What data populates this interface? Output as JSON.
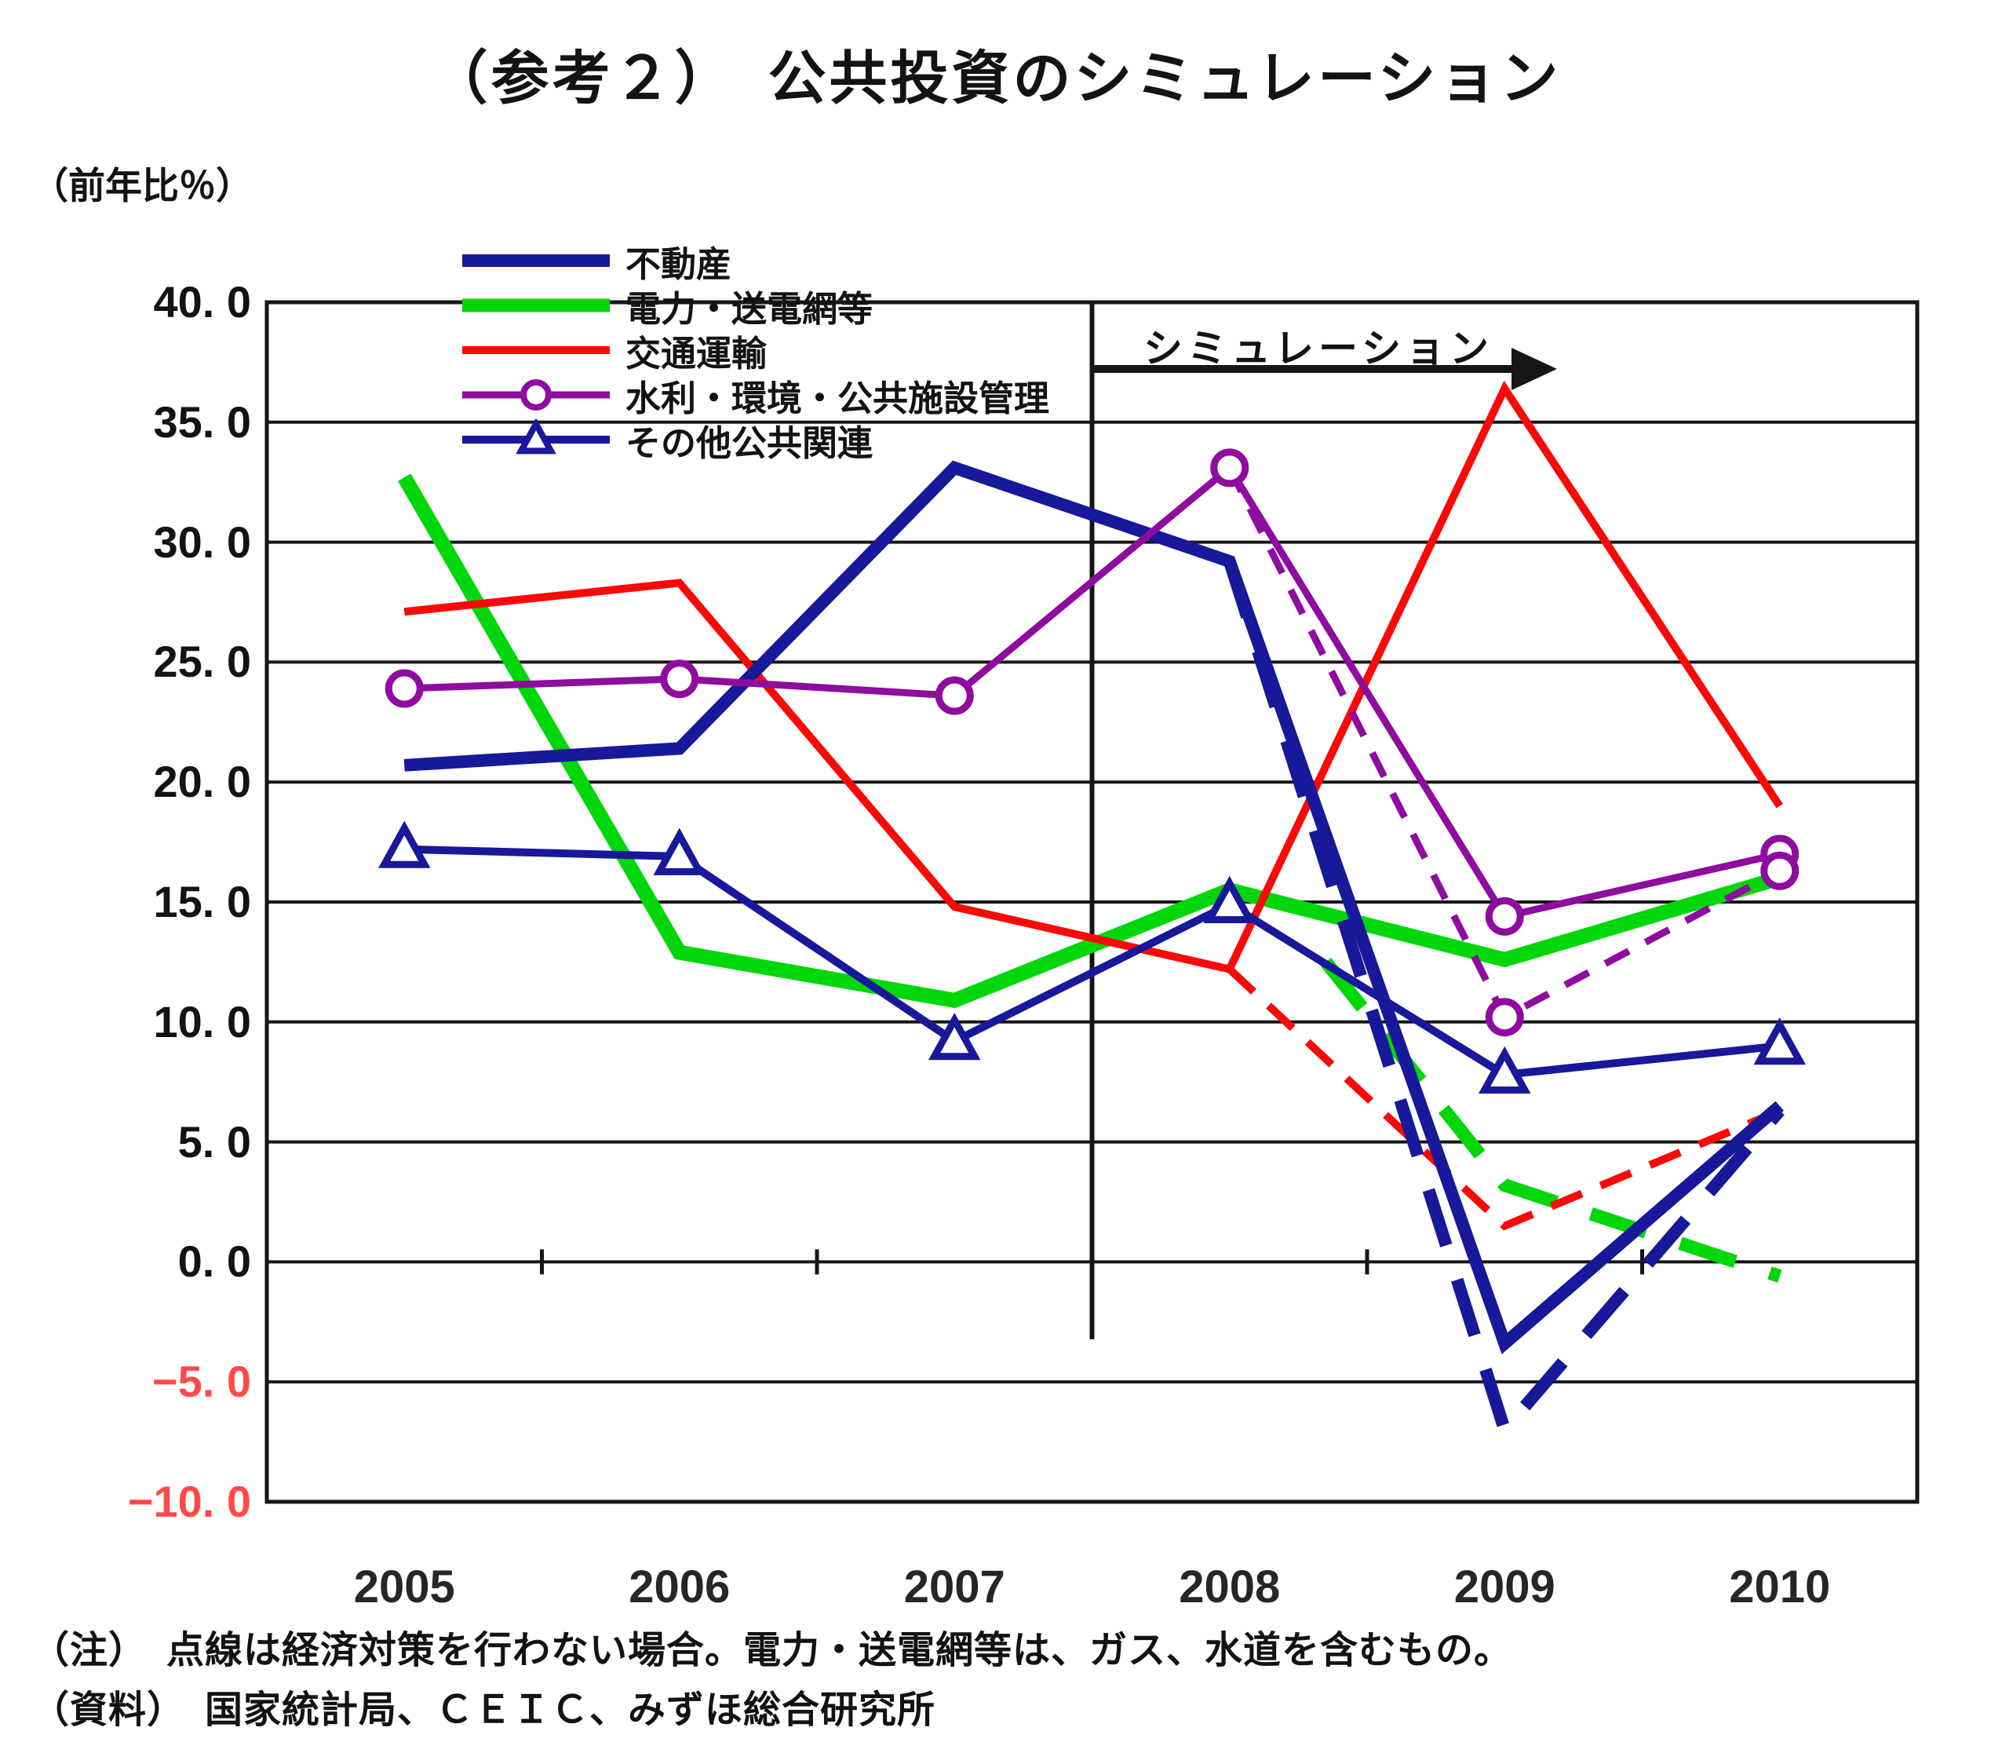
{
  "title": "（参考２）　公共投資のシミュレーション",
  "y_axis": {
    "unit_label": "（前年比％）",
    "ticks": [
      {
        "label": "40. 0",
        "value": 40,
        "color": "#131313"
      },
      {
        "label": "35. 0",
        "value": 35,
        "color": "#131313"
      },
      {
        "label": "30. 0",
        "value": 30,
        "color": "#131313"
      },
      {
        "label": "25. 0",
        "value": 25,
        "color": "#131313"
      },
      {
        "label": "20. 0",
        "value": 20,
        "color": "#131313"
      },
      {
        "label": "15. 0",
        "value": 15,
        "color": "#131313"
      },
      {
        "label": "10. 0",
        "value": 10,
        "color": "#131313"
      },
      {
        "label": "5. 0",
        "value": 5,
        "color": "#131313"
      },
      {
        "label": "0. 0",
        "value": 0,
        "color": "#131313"
      },
      {
        "label": "−5. 0",
        "value": -5,
        "color": "#ff4a4a"
      },
      {
        "label": "−10. 0",
        "value": -10,
        "color": "#ff4a4a"
      }
    ]
  },
  "x_axis": {
    "labels": [
      "2005",
      "2006",
      "2007",
      "2008",
      "2009",
      "2010"
    ],
    "years": [
      2005,
      2006,
      2007,
      2008,
      2009,
      2010
    ]
  },
  "annotation": {
    "simulation_label": "シミュレーション"
  },
  "legend": [
    {
      "label": "不動産",
      "series": "realestate"
    },
    {
      "label": "電力・送電網等",
      "series": "power"
    },
    {
      "label": "交通運輸",
      "series": "transport"
    },
    {
      "label": "水利・環境・公共施設管理",
      "series": "water"
    },
    {
      "label": "その他公共関連",
      "series": "other"
    }
  ],
  "notes": [
    "（注）　点線は経済対策を行わない場合。電力・送電網等は、ガス、水道を含むもの。",
    "（資料）　国家統計局、ＣＥＩＣ、みずほ総合研究所"
  ],
  "colors": {
    "navy": "#18189a",
    "green": "#00d70a",
    "red": "#fb0808",
    "purple": "#8e0c9e",
    "axis": "#161616",
    "negative_tick": "#ff4a4a"
  },
  "chart_data": {
    "type": "line",
    "title": "（参考２）　公共投資のシミュレーション",
    "xlabel": "",
    "ylabel": "（前年比％）",
    "ylim": [
      -10,
      40
    ],
    "grid": true,
    "legend_position": "top-left",
    "simulation_start_x": 2007.5,
    "x": [
      2005,
      2006,
      2007,
      2008,
      2009,
      2010
    ],
    "series": [
      {
        "id": "power",
        "name": "電力・送電網等",
        "color": "#00d70a",
        "width": 19,
        "dash": false,
        "marker": "none",
        "points": [
          [
            2005,
            32.7
          ],
          [
            2006,
            12.9
          ],
          [
            2007,
            10.9
          ],
          [
            2008,
            15.5
          ],
          [
            2009,
            12.6
          ],
          [
            2010,
            16.0
          ]
        ]
      },
      {
        "id": "power-nomeasure",
        "name": "電力・送電網等（対策なし・点線）",
        "color": "#00d70a",
        "width": 17,
        "dash": true,
        "marker": "none",
        "points": [
          [
            2008.35,
            12.5
          ],
          [
            2009,
            3.2
          ],
          [
            2010,
            -0.6
          ]
        ]
      },
      {
        "id": "transport",
        "name": "交通運輸",
        "color": "#fb0808",
        "width": 10,
        "dash": false,
        "marker": "none",
        "points": [
          [
            2005,
            27.1
          ],
          [
            2006,
            28.3
          ],
          [
            2007,
            14.8
          ],
          [
            2008,
            12.2
          ],
          [
            2009,
            36.4
          ],
          [
            2010,
            19.0
          ]
        ]
      },
      {
        "id": "transport-nomeasure",
        "name": "交通運輸（対策なし・点線）",
        "color": "#fb0808",
        "width": 10,
        "dash": true,
        "marker": "none",
        "points": [
          [
            2008,
            12.2
          ],
          [
            2009,
            1.5
          ],
          [
            2010,
            6.3
          ]
        ]
      },
      {
        "id": "realestate",
        "name": "不動産",
        "color": "#18189a",
        "width": 16,
        "dash": false,
        "marker": "none",
        "points": [
          [
            2005,
            20.7
          ],
          [
            2006,
            21.4
          ],
          [
            2007,
            33.1
          ],
          [
            2008,
            29.2
          ],
          [
            2009,
            -3.4
          ],
          [
            2010,
            6.5
          ]
        ]
      },
      {
        "id": "realestate-nomeasure",
        "name": "不動産（対策なし・点線）",
        "color": "#18189a",
        "width": 16,
        "dash": true,
        "marker": "none",
        "points": [
          [
            2008,
            29.2
          ],
          [
            2009,
            -7.0
          ],
          [
            2010,
            6.3
          ]
        ]
      },
      {
        "id": "water",
        "name": "水利・環境・公共施設管理",
        "color": "#8e0c9e",
        "width": 9,
        "dash": false,
        "marker": "circle",
        "points": [
          [
            2005,
            23.9
          ],
          [
            2006,
            24.3
          ],
          [
            2007,
            23.6
          ],
          [
            2008,
            33.1
          ],
          [
            2009,
            14.4
          ],
          [
            2010,
            17.0
          ]
        ]
      },
      {
        "id": "water-nomeasure",
        "name": "水利・環境・公共施設管理（対策なし・点線）",
        "color": "#8e0c9e",
        "width": 9,
        "dash": true,
        "marker": "circle",
        "points": [
          [
            2008,
            33.1
          ],
          [
            2009,
            10.2
          ],
          [
            2010,
            16.3
          ]
        ],
        "marker_points": [
          [
            2009,
            10.2
          ],
          [
            2010,
            16.3
          ]
        ]
      },
      {
        "id": "other",
        "name": "その他公共関連",
        "color": "#18189a",
        "width": 10,
        "dash": false,
        "marker": "triangle",
        "points": [
          [
            2005,
            17.2
          ],
          [
            2006,
            16.9
          ],
          [
            2007,
            9.2
          ],
          [
            2008,
            14.9
          ],
          [
            2009,
            7.8
          ],
          [
            2010,
            9.0
          ]
        ]
      }
    ]
  }
}
